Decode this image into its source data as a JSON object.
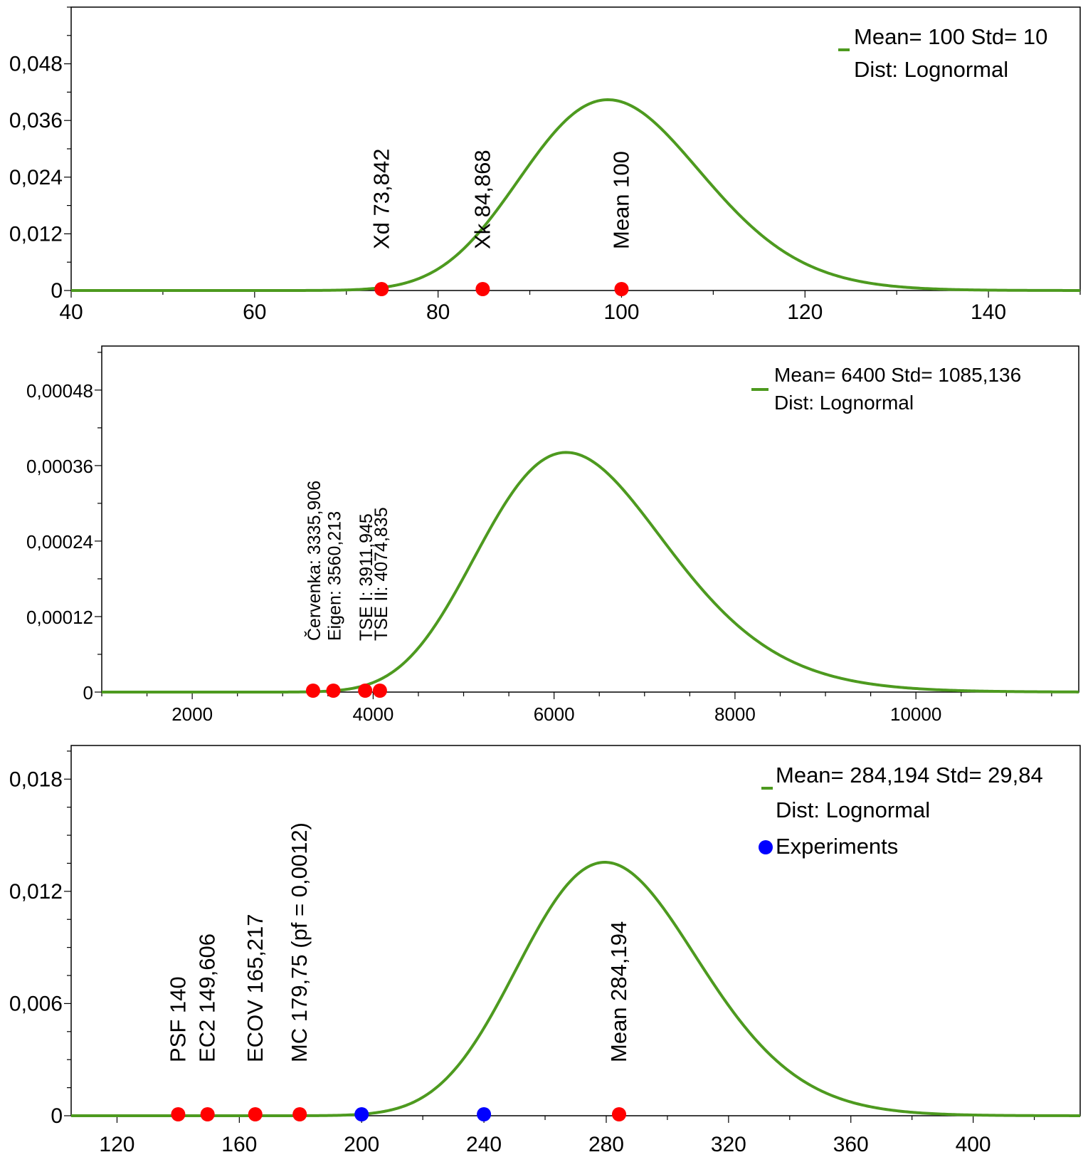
{
  "chart_data": [
    {
      "type": "line",
      "title": "",
      "xlabel": "",
      "ylabel": "",
      "xlim": [
        40,
        150
      ],
      "ylim": [
        0,
        0.06
      ],
      "x_ticks": [
        "40",
        "60",
        "80",
        "100",
        "120",
        "140"
      ],
      "x_tick_values": [
        40,
        60,
        80,
        100,
        120,
        140
      ],
      "y_ticks": [
        "0",
        "0,012",
        "0,024",
        "0,036",
        "0,048"
      ],
      "y_tick_values": [
        0,
        0.012,
        0.024,
        0.036,
        0.048
      ],
      "series": [
        {
          "name": "Mean= 100 Std= 10",
          "distribution": "lognormal",
          "mean": 100,
          "std": 10,
          "color": "#4d9a1f"
        }
      ],
      "legend": {
        "position": "top-right",
        "entries": [
          "Mean= 100 Std= 10",
          "Dist: Lognormal"
        ]
      },
      "markers": [
        {
          "x": 73.842,
          "label": "Xd  73,842",
          "color": "#ff0000"
        },
        {
          "x": 84.868,
          "label": "Xk  84,868",
          "color": "#ff0000"
        },
        {
          "x": 100,
          "label": "Mean  100",
          "color": "#ff0000"
        }
      ]
    },
    {
      "type": "line",
      "title": "",
      "xlabel": "",
      "ylabel": "",
      "xlim": [
        1000,
        11800
      ],
      "ylim": [
        0,
        0.00055
      ],
      "x_ticks": [
        "2000",
        "4000",
        "6000",
        "8000",
        "10000"
      ],
      "x_tick_values": [
        2000,
        4000,
        6000,
        8000,
        10000
      ],
      "y_ticks": [
        "0",
        "0,00012",
        "0,00024",
        "0,00036",
        "0,00048"
      ],
      "y_tick_values": [
        0,
        0.00012,
        0.00024,
        0.00036,
        0.00048
      ],
      "series": [
        {
          "name": "Mean= 6400 Std= 1085,136",
          "distribution": "lognormal",
          "mean": 6400,
          "std": 1085.136,
          "color": "#4d9a1f"
        }
      ],
      "legend": {
        "position": "top-right",
        "entries": [
          "Mean= 6400 Std= 1085,136",
          "Dist: Lognormal"
        ]
      },
      "markers": [
        {
          "x": 3335.906,
          "label": "Červenka: 3335,906",
          "color": "#ff0000"
        },
        {
          "x": 3560.213,
          "label": "Eigen: 3560,213",
          "color": "#ff0000"
        },
        {
          "x": 3911.945,
          "label": "TSE I: 3911,945",
          "color": "#ff0000"
        },
        {
          "x": 4074.835,
          "label": "TSE II: 4074,835",
          "color": "#ff0000"
        }
      ]
    },
    {
      "type": "line",
      "title": "",
      "xlabel": "",
      "ylabel": "",
      "xlim": [
        105,
        435
      ],
      "ylim": [
        0,
        0.0198
      ],
      "x_ticks": [
        "120",
        "160",
        "200",
        "240",
        "280",
        "320",
        "360",
        "400"
      ],
      "x_tick_values": [
        120,
        160,
        200,
        240,
        280,
        320,
        360,
        400
      ],
      "y_ticks": [
        "0",
        "0,006",
        "0,012",
        "0,018"
      ],
      "y_tick_values": [
        0,
        0.006,
        0.012,
        0.018
      ],
      "series": [
        {
          "name": "Mean= 284,194 Std= 29,84",
          "distribution": "lognormal",
          "mean": 284.194,
          "std": 29.84,
          "color": "#4d9a1f"
        }
      ],
      "legend": {
        "position": "top-right",
        "entries": [
          "Mean= 284,194 Std= 29,84",
          "Dist: Lognormal",
          "Experiments"
        ]
      },
      "markers": [
        {
          "x": 140,
          "label": "PSF  140",
          "color": "#ff0000"
        },
        {
          "x": 149.606,
          "label": "EC2  149,606",
          "color": "#ff0000"
        },
        {
          "x": 165.217,
          "label": "ECOV  165,217",
          "color": "#ff0000"
        },
        {
          "x": 179.75,
          "label": "MC  179,75 (pf = 0,0012)",
          "color": "#ff0000"
        },
        {
          "x": 284.194,
          "label": "Mean  284,194",
          "color": "#ff0000"
        }
      ],
      "experiments": {
        "name": "Experiments",
        "x": [
          200,
          240
        ],
        "color": "#0000ff"
      }
    }
  ]
}
